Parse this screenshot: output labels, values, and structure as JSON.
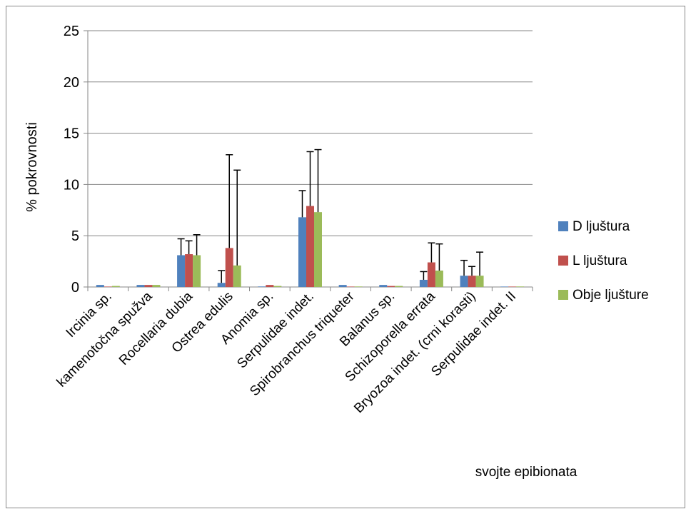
{
  "chart_data": {
    "type": "bar",
    "title": "",
    "xlabel": "svojte epibionata",
    "ylabel": "% pokrovnosti",
    "ylim": [
      0,
      25
    ],
    "yticks": [
      0,
      5,
      10,
      15,
      20,
      25
    ],
    "grid": true,
    "legend_position": "right",
    "categories": [
      "Ircinia sp.",
      "kamenotočna spužva",
      "Rocellaria dubia",
      "Ostrea edulis",
      "Anomia sp.",
      "Serpulidae indet.",
      "Spirobranchus triqueter",
      "Balanus sp.",
      "Schizoporella errata",
      "Bryozoa indet. (crni korasti)",
      "Serpulidae indet. II"
    ],
    "series": [
      {
        "name": "D ljuštura",
        "color": "#4f81bd",
        "values": [
          0.2,
          0.2,
          3.1,
          0.4,
          0.05,
          6.8,
          0.2,
          0.2,
          0.7,
          1.1,
          0.0
        ],
        "error": [
          0,
          0,
          1.6,
          1.2,
          0,
          2.6,
          0,
          0,
          0.8,
          1.5,
          0
        ]
      },
      {
        "name": "L ljuštura",
        "color": "#c0504d",
        "values": [
          0.0,
          0.2,
          3.2,
          3.8,
          0.2,
          7.9,
          0.0,
          0.1,
          2.4,
          1.1,
          0.0
        ],
        "error": [
          0,
          0,
          1.3,
          9.1,
          0,
          5.3,
          0,
          0,
          1.9,
          0.9,
          0
        ]
      },
      {
        "name": "Obje ljušture",
        "color": "#9bbb59",
        "values": [
          0.1,
          0.2,
          3.1,
          2.1,
          0.1,
          7.3,
          0.05,
          0.1,
          1.6,
          1.1,
          0.05
        ],
        "error": [
          0,
          0,
          2.0,
          9.3,
          0,
          6.1,
          0,
          0,
          2.6,
          2.3,
          0
        ]
      }
    ]
  }
}
